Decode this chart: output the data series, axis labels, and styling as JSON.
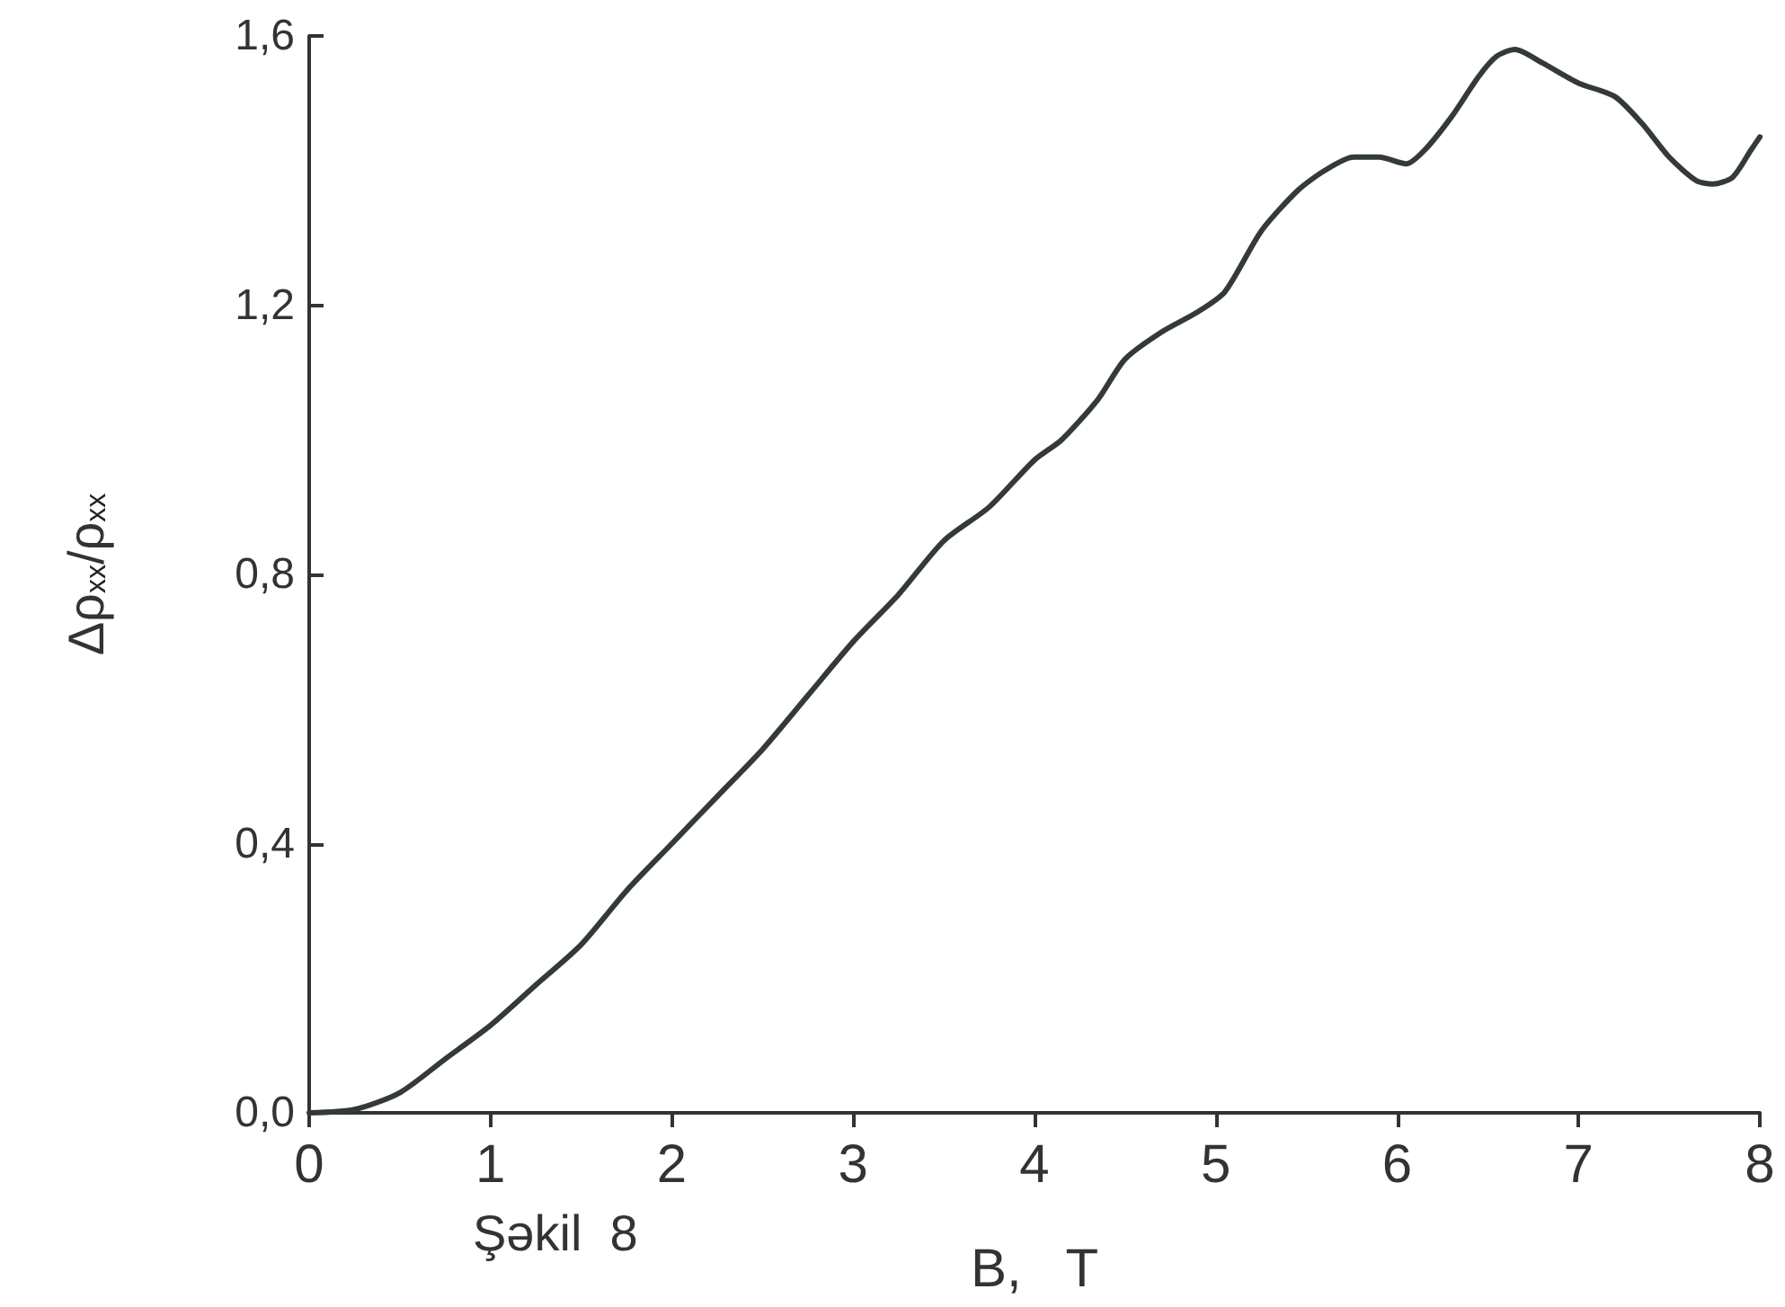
{
  "chart_data": {
    "type": "line",
    "xlabel": "B,   T",
    "ylabel": "Δρ$_{xx}$/ρ$_{xx}$",
    "annotations": [
      "Şəkil  8"
    ],
    "series": [
      {
        "color": "#333a38",
        "x": [
          0,
          0.25,
          0.5,
          0.75,
          1,
          1.25,
          1.5,
          1.75,
          2,
          2.25,
          2.5,
          2.75,
          3,
          3.25,
          3.5,
          3.75,
          4,
          4.15,
          4.35,
          4.5,
          4.7,
          4.9,
          5.05,
          5.25,
          5.45,
          5.6,
          5.76,
          5.9,
          6.05,
          6.15,
          6.3,
          6.45,
          6.55,
          6.65,
          6.8,
          7.0,
          7.2,
          7.35,
          7.5,
          7.65,
          7.74,
          7.85,
          7.95,
          8.0
        ],
        "values": [
          0,
          0.005,
          0.03,
          0.08,
          0.13,
          0.19,
          0.25,
          0.33,
          0.4,
          0.47,
          0.54,
          0.62,
          0.7,
          0.77,
          0.85,
          0.9,
          0.97,
          1.0,
          1.06,
          1.12,
          1.16,
          1.19,
          1.22,
          1.31,
          1.37,
          1.4,
          1.42,
          1.42,
          1.41,
          1.43,
          1.48,
          1.54,
          1.57,
          1.58,
          1.56,
          1.53,
          1.51,
          1.47,
          1.42,
          1.385,
          1.38,
          1.39,
          1.43,
          1.45
        ]
      }
    ],
    "xlim": [
      0,
      8
    ],
    "xticks": [
      0,
      1,
      2,
      3,
      4,
      5,
      6,
      7,
      8
    ],
    "ylim": [
      0,
      1.6
    ],
    "yticks": [
      {
        "value": 0,
        "label": "0,0"
      },
      {
        "value": 0.4,
        "label": "0,4"
      },
      {
        "value": 0.8,
        "label": "0,8"
      },
      {
        "value": 1.2,
        "label": "1,2"
      },
      {
        "value": 1.6,
        "label": "1,6"
      }
    ],
    "grid": false,
    "marker": "none",
    "line_style": "solid"
  }
}
